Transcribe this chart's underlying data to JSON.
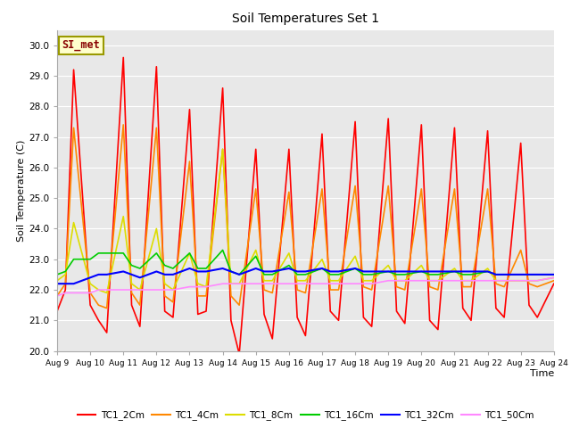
{
  "title": "Soil Temperatures Set 1",
  "xlabel": "Time",
  "ylabel": "Soil Temperature (C)",
  "ylim": [
    20.0,
    30.5
  ],
  "yticks": [
    20.0,
    21.0,
    22.0,
    23.0,
    24.0,
    25.0,
    26.0,
    27.0,
    28.0,
    29.0,
    30.0
  ],
  "x_tick_labels": [
    "Aug 9",
    "Aug 10",
    "Aug 11",
    "Aug 12",
    "Aug 13",
    "Aug 14",
    "Aug 15",
    "Aug 16",
    "Aug 17",
    "Aug 18",
    "Aug 19",
    "Aug 20",
    "Aug 21",
    "Aug 22",
    "Aug 23",
    "Aug 24"
  ],
  "bg_color": "#e8e8e8",
  "annotation_text": "SI_met",
  "annotation_bg": "#ffffcc",
  "annotation_border": "#999900",
  "series": [
    {
      "label": "TC1_2Cm",
      "color": "#ff0000",
      "lw": 1.2,
      "data_x": [
        0,
        0.25,
        0.5,
        1.0,
        1.25,
        1.5,
        2.0,
        2.25,
        2.5,
        3.0,
        3.25,
        3.5,
        4.0,
        4.25,
        4.5,
        5.0,
        5.25,
        5.5,
        6.0,
        6.25,
        6.5,
        7.0,
        7.25,
        7.5,
        8.0,
        8.25,
        8.5,
        9.0,
        9.25,
        9.5,
        10.0,
        10.25,
        10.5,
        11.0,
        11.25,
        11.5,
        12.0,
        12.25,
        12.5,
        13.0,
        13.25,
        13.5,
        14.0,
        14.25,
        14.5,
        15.0
      ],
      "data_y": [
        21.3,
        22.0,
        29.2,
        21.5,
        21.0,
        20.6,
        29.6,
        21.5,
        20.8,
        29.3,
        21.3,
        21.1,
        27.9,
        21.2,
        21.3,
        28.6,
        21.0,
        19.9,
        26.6,
        21.2,
        20.4,
        26.6,
        21.1,
        20.5,
        27.1,
        21.3,
        21.0,
        27.5,
        21.1,
        20.8,
        27.6,
        21.3,
        20.9,
        27.4,
        21.0,
        20.7,
        27.3,
        21.4,
        21.0,
        27.2,
        21.4,
        21.1,
        26.8,
        21.5,
        21.1,
        22.2
      ]
    },
    {
      "label": "TC1_4Cm",
      "color": "#ff8800",
      "lw": 1.2,
      "data_x": [
        0,
        0.25,
        0.5,
        1.0,
        1.25,
        1.5,
        2.0,
        2.25,
        2.5,
        3.0,
        3.25,
        3.5,
        4.0,
        4.25,
        4.5,
        5.0,
        5.25,
        5.5,
        6.0,
        6.25,
        6.5,
        7.0,
        7.25,
        7.5,
        8.0,
        8.25,
        8.5,
        9.0,
        9.25,
        9.5,
        10.0,
        10.25,
        10.5,
        11.0,
        11.25,
        11.5,
        12.0,
        12.25,
        12.5,
        13.0,
        13.25,
        13.5,
        14.0,
        14.25,
        14.5,
        15.0
      ],
      "data_y": [
        21.8,
        22.2,
        27.3,
        21.9,
        21.5,
        21.4,
        27.4,
        21.9,
        21.5,
        27.3,
        21.8,
        21.6,
        26.2,
        21.8,
        21.8,
        26.6,
        21.8,
        21.5,
        25.3,
        22.0,
        21.9,
        25.2,
        22.0,
        21.9,
        25.3,
        22.0,
        22.0,
        25.4,
        22.1,
        22.0,
        25.4,
        22.1,
        22.0,
        25.3,
        22.1,
        22.0,
        25.3,
        22.1,
        22.1,
        25.3,
        22.2,
        22.1,
        23.3,
        22.2,
        22.1,
        22.3
      ]
    },
    {
      "label": "TC1_8Cm",
      "color": "#dddd00",
      "lw": 1.2,
      "data_x": [
        0,
        0.25,
        0.5,
        1.0,
        1.25,
        1.5,
        2.0,
        2.25,
        2.5,
        3.0,
        3.25,
        3.5,
        4.0,
        4.25,
        4.5,
        5.0,
        5.25,
        5.5,
        6.0,
        6.25,
        6.5,
        7.0,
        7.25,
        7.5,
        8.0,
        8.25,
        8.5,
        9.0,
        9.25,
        9.5,
        10.0,
        10.25,
        10.5,
        11.0,
        11.25,
        11.5,
        12.0,
        12.25,
        12.5,
        13.0,
        13.25,
        13.5,
        14.0,
        14.25,
        14.5,
        15.0
      ],
      "data_y": [
        22.3,
        22.5,
        24.2,
        22.2,
        22.0,
        21.9,
        24.4,
        22.2,
        22.0,
        24.0,
        22.2,
        22.0,
        23.2,
        22.2,
        22.1,
        26.6,
        22.2,
        22.2,
        23.3,
        22.3,
        22.3,
        23.2,
        22.3,
        22.3,
        23.0,
        22.3,
        22.3,
        23.1,
        22.3,
        22.3,
        22.8,
        22.3,
        22.3,
        22.8,
        22.3,
        22.3,
        22.7,
        22.3,
        22.3,
        22.7,
        22.3,
        22.3,
        22.3,
        22.3,
        22.3,
        22.4
      ]
    },
    {
      "label": "TC1_16Cm",
      "color": "#00cc00",
      "lw": 1.2,
      "data_x": [
        0,
        0.25,
        0.5,
        1.0,
        1.25,
        1.5,
        2.0,
        2.25,
        2.5,
        3.0,
        3.25,
        3.5,
        4.0,
        4.25,
        4.5,
        5.0,
        5.25,
        5.5,
        6.0,
        6.25,
        6.5,
        7.0,
        7.25,
        7.5,
        8.0,
        8.25,
        8.5,
        9.0,
        9.25,
        9.5,
        10.0,
        10.25,
        10.5,
        11.0,
        11.25,
        11.5,
        12.0,
        12.25,
        12.5,
        13.0,
        13.25,
        13.5,
        14.0,
        14.25,
        14.5,
        15.0
      ],
      "data_y": [
        22.5,
        22.6,
        23.0,
        23.0,
        23.2,
        23.2,
        23.2,
        22.8,
        22.7,
        23.2,
        22.8,
        22.7,
        23.2,
        22.7,
        22.7,
        23.3,
        22.6,
        22.5,
        23.1,
        22.5,
        22.5,
        22.8,
        22.5,
        22.5,
        22.7,
        22.5,
        22.5,
        22.7,
        22.5,
        22.5,
        22.6,
        22.5,
        22.5,
        22.6,
        22.5,
        22.5,
        22.6,
        22.5,
        22.5,
        22.6,
        22.5,
        22.5,
        22.5,
        22.5,
        22.5,
        22.5
      ]
    },
    {
      "label": "TC1_32Cm",
      "color": "#0000ff",
      "lw": 1.5,
      "data_x": [
        0,
        0.25,
        0.5,
        1.0,
        1.25,
        1.5,
        2.0,
        2.25,
        2.5,
        3.0,
        3.25,
        3.5,
        4.0,
        4.25,
        4.5,
        5.0,
        5.25,
        5.5,
        6.0,
        6.25,
        6.5,
        7.0,
        7.25,
        7.5,
        8.0,
        8.25,
        8.5,
        9.0,
        9.25,
        9.5,
        10.0,
        10.25,
        10.5,
        11.0,
        11.25,
        11.5,
        12.0,
        12.25,
        12.5,
        13.0,
        13.25,
        13.5,
        14.0,
        14.25,
        14.5,
        15.0
      ],
      "data_y": [
        22.2,
        22.2,
        22.2,
        22.4,
        22.5,
        22.5,
        22.6,
        22.5,
        22.4,
        22.6,
        22.5,
        22.5,
        22.7,
        22.6,
        22.6,
        22.7,
        22.6,
        22.5,
        22.7,
        22.6,
        22.6,
        22.7,
        22.6,
        22.6,
        22.7,
        22.6,
        22.6,
        22.7,
        22.6,
        22.6,
        22.6,
        22.6,
        22.6,
        22.6,
        22.6,
        22.6,
        22.6,
        22.6,
        22.6,
        22.6,
        22.5,
        22.5,
        22.5,
        22.5,
        22.5,
        22.5
      ]
    },
    {
      "label": "TC1_50Cm",
      "color": "#ff88ff",
      "lw": 1.2,
      "data_x": [
        0,
        0.25,
        0.5,
        1.0,
        1.25,
        1.5,
        2.0,
        2.25,
        2.5,
        3.0,
        3.25,
        3.5,
        4.0,
        4.25,
        4.5,
        5.0,
        5.25,
        5.5,
        6.0,
        6.25,
        6.5,
        7.0,
        7.25,
        7.5,
        8.0,
        8.25,
        8.5,
        9.0,
        9.25,
        9.5,
        10.0,
        10.25,
        10.5,
        11.0,
        11.25,
        11.5,
        12.0,
        12.25,
        12.5,
        13.0,
        13.25,
        13.5,
        14.0,
        14.25,
        14.5,
        15.0
      ],
      "data_y": [
        21.8,
        21.9,
        21.9,
        21.9,
        22.0,
        22.0,
        22.0,
        22.0,
        22.0,
        22.0,
        22.0,
        22.0,
        22.1,
        22.1,
        22.1,
        22.2,
        22.2,
        22.2,
        22.2,
        22.2,
        22.2,
        22.2,
        22.2,
        22.2,
        22.2,
        22.2,
        22.2,
        22.2,
        22.2,
        22.2,
        22.3,
        22.3,
        22.3,
        22.3,
        22.3,
        22.3,
        22.3,
        22.3,
        22.3,
        22.3,
        22.3,
        22.3,
        22.3,
        22.3,
        22.3,
        22.4
      ]
    }
  ]
}
